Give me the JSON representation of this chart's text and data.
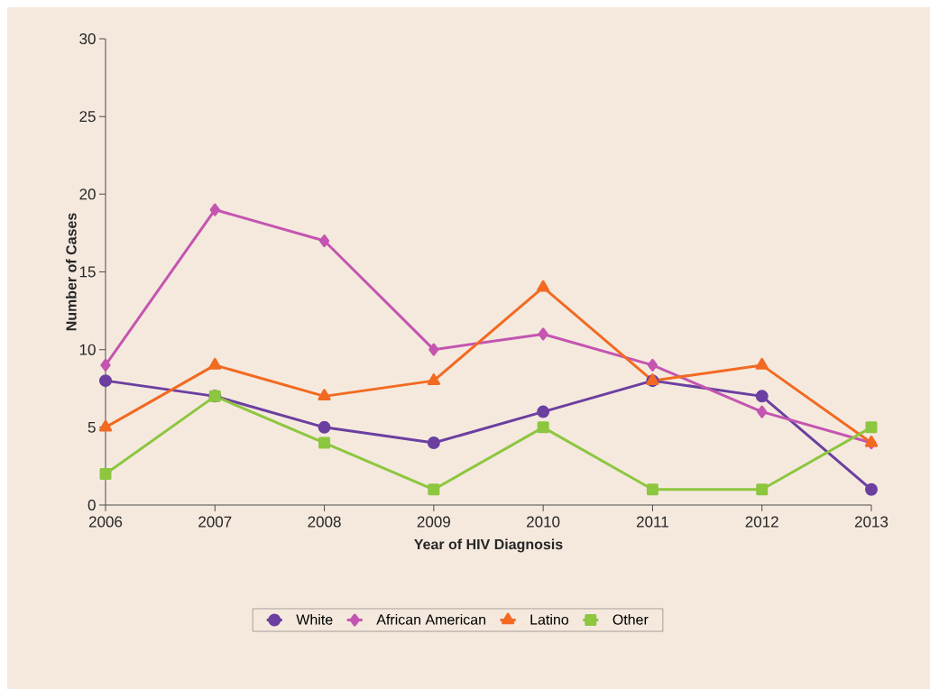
{
  "chart_data": {
    "type": "line",
    "xlabel": "Year of HIV Diagnosis",
    "ylabel": "Number of Cases",
    "x": [
      2006,
      2007,
      2008,
      2009,
      2010,
      2011,
      2012,
      2013
    ],
    "series": [
      {
        "name": "White",
        "color": "#6b3fa0",
        "marker": "circle",
        "values": [
          8,
          7,
          5,
          4,
          6,
          8,
          7,
          1
        ]
      },
      {
        "name": "African American",
        "color": "#c455b0",
        "marker": "diamond",
        "values": [
          9,
          19,
          17,
          10,
          11,
          9,
          6,
          4
        ]
      },
      {
        "name": "Latino",
        "color": "#f26a21",
        "marker": "triangle",
        "values": [
          5,
          9,
          7,
          8,
          14,
          8,
          9,
          4
        ]
      },
      {
        "name": "Other",
        "color": "#8dc63f",
        "marker": "square",
        "values": [
          2,
          7,
          4,
          1,
          5,
          1,
          1,
          5
        ]
      }
    ],
    "xlim": [
      2006,
      2013
    ],
    "xticks": [
      2006,
      2007,
      2008,
      2009,
      2010,
      2011,
      2012,
      2013
    ],
    "ylim": [
      0,
      30
    ],
    "yticks": [
      0,
      5,
      10,
      15,
      20,
      25,
      30
    ],
    "grid": false,
    "legend": "bottom",
    "line_style": "solid"
  }
}
